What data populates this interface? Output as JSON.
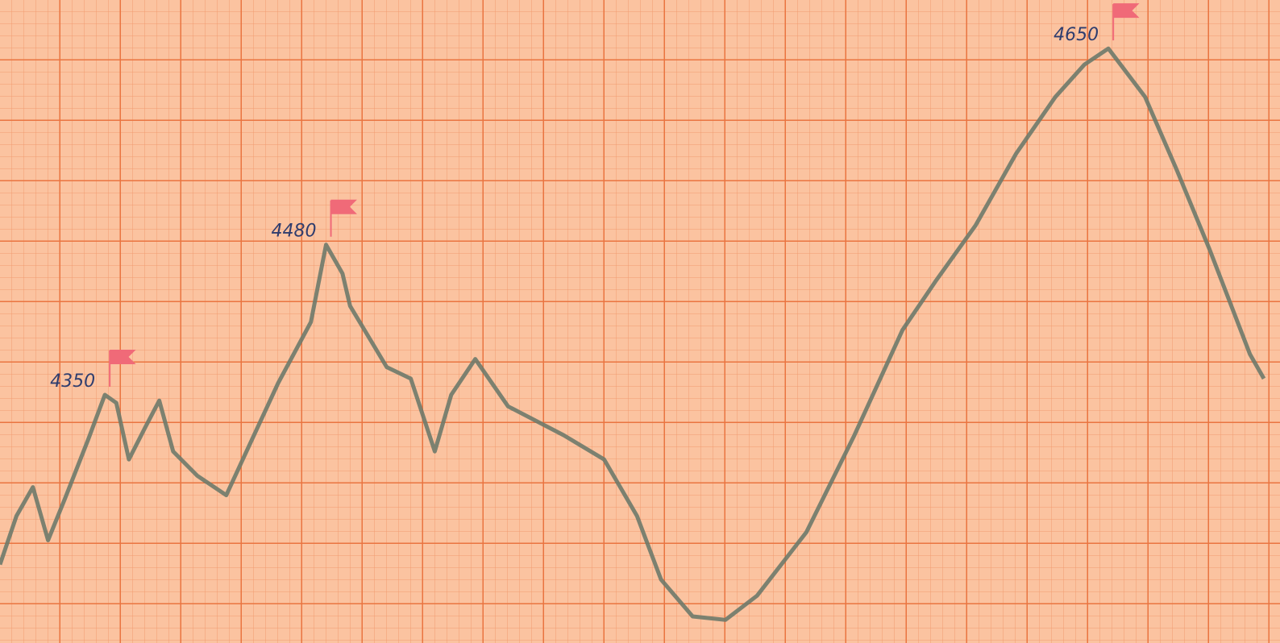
{
  "chart_data": {
    "type": "line",
    "x": [
      0,
      1.3,
      2.6,
      3.8,
      5.1,
      7,
      8.3,
      9.2,
      10.2,
      11.5,
      12.6,
      13.7,
      15.6,
      17.9,
      19.8,
      22,
      24.6,
      25.8,
      27.1,
      27.7,
      30.6,
      32.5,
      34.4,
      35.7,
      37.6,
      40.2,
      44.6,
      47.8,
      50.4,
      52.3,
      54.8,
      57.4,
      59.9,
      63.8,
      67.6,
      71.4,
      74,
      77.2,
      80.4,
      83.5,
      85.8,
      87.7,
      90.6,
      93.1,
      95.7,
      98.9,
      100
    ],
    "values": [
      4203,
      4245,
      4270,
      4224,
      4259,
      4312,
      4350,
      4343,
      4294,
      4322,
      4345,
      4301,
      4280,
      4263,
      4308,
      4360,
      4413,
      4480,
      4455,
      4427,
      4374,
      4364,
      4301,
      4350,
      4381,
      4340,
      4315,
      4294,
      4245,
      4190,
      4158,
      4155,
      4176,
      4231,
      4315,
      4406,
      4448,
      4497,
      4559,
      4608,
      4636,
      4650,
      4608,
      4545,
      4476,
      4385,
      4364
    ],
    "color": "#6e7a6a",
    "xlim": [
      0,
      100
    ],
    "ylim": [
      4135,
      4692
    ],
    "annotations": [
      {
        "text": "4350",
        "index": 6
      },
      {
        "text": "4480",
        "index": 17
      },
      {
        "text": "4650",
        "index": 41
      }
    ]
  }
}
